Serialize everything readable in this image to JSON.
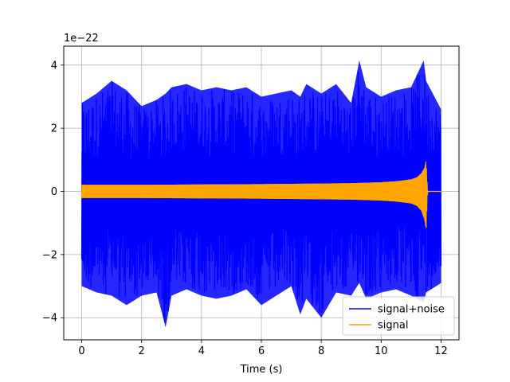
{
  "chart_data": {
    "type": "line",
    "title": "",
    "xlabel": "Time (s)",
    "ylabel": "",
    "y_offset_text": "1e−22",
    "xlim": [
      -0.6,
      12.6
    ],
    "ylim": [
      -4.7e-22,
      4.6e-22
    ],
    "x_ticks": [
      0,
      2,
      4,
      6,
      8,
      10,
      12
    ],
    "x_tick_labels": [
      "0",
      "2",
      "4",
      "6",
      "8",
      "10",
      "12"
    ],
    "y_ticks": [
      -4e-22,
      -2e-22,
      0,
      2e-22,
      4e-22
    ],
    "y_tick_labels": [
      "−4",
      "−2",
      "0",
      "2",
      "4"
    ],
    "grid": true,
    "legend_position": "lower-right",
    "series": [
      {
        "name": "signal+noise",
        "color": "#0000ff",
        "x": [
          0,
          0.5,
          1,
          1.5,
          2,
          2.5,
          2.8,
          3,
          3.5,
          4,
          4.5,
          5,
          5.5,
          6,
          6.5,
          7,
          7.3,
          7.5,
          8,
          8.5,
          9,
          9.27,
          9.5,
          10,
          10.5,
          11,
          11.42,
          11.5,
          12
        ],
        "y_upper": [
          2.8e-22,
          3.1e-22,
          3.5e-22,
          3.2e-22,
          2.7e-22,
          2.9e-22,
          3.1e-22,
          3.3e-22,
          3.4e-22,
          3.2e-22,
          3.3e-22,
          3.2e-22,
          3.3e-22,
          3e-22,
          3.1e-22,
          3.2e-22,
          3e-22,
          3.4e-22,
          3.1e-22,
          3.4e-22,
          2.8e-22,
          4.15e-22,
          3.3e-22,
          3e-22,
          3.2e-22,
          3.3e-22,
          4.15e-22,
          3.5e-22,
          2.6e-22
        ],
        "y_lower": [
          -3e-22,
          -3.2e-22,
          -3.3e-22,
          -3.6e-22,
          -3.3e-22,
          -3.2e-22,
          -4.3e-22,
          -3.3e-22,
          -3.1e-22,
          -3.3e-22,
          -3.4e-22,
          -3.3e-22,
          -3.1e-22,
          -3.6e-22,
          -3.3e-22,
          -3e-22,
          -3.9e-22,
          -3.4e-22,
          -4e-22,
          -3.2e-22,
          -3.3e-22,
          -2.9e-22,
          -3.4e-22,
          -3.2e-22,
          -3.1e-22,
          -3.3e-22,
          -3.5e-22,
          -3.2e-22,
          -2.9e-22
        ]
      },
      {
        "name": "signal",
        "color": "#ffa500",
        "x": [
          0,
          2,
          4,
          6,
          8,
          9,
          10,
          10.5,
          11,
          11.2,
          11.35,
          11.45,
          11.5,
          11.55,
          11.6,
          12.05
        ],
        "y_upper": [
          2.1e-23,
          2.1e-23,
          2.2e-23,
          2.3e-23,
          2.5e-23,
          2.6e-23,
          2.9e-23,
          3.2e-23,
          3.8e-23,
          4.5e-23,
          5.8e-23,
          7.5e-23,
          9.7e-23,
          2e-24,
          0,
          0
        ],
        "y_lower": [
          -2.1e-23,
          -2.1e-23,
          -2.2e-23,
          -2.3e-23,
          -2.5e-23,
          -2.6e-23,
          -2.9e-23,
          -3.2e-23,
          -3.8e-23,
          -4.6e-23,
          -6.2e-23,
          -9e-23,
          -1.2e-22,
          -2e-24,
          0,
          0
        ]
      }
    ]
  }
}
